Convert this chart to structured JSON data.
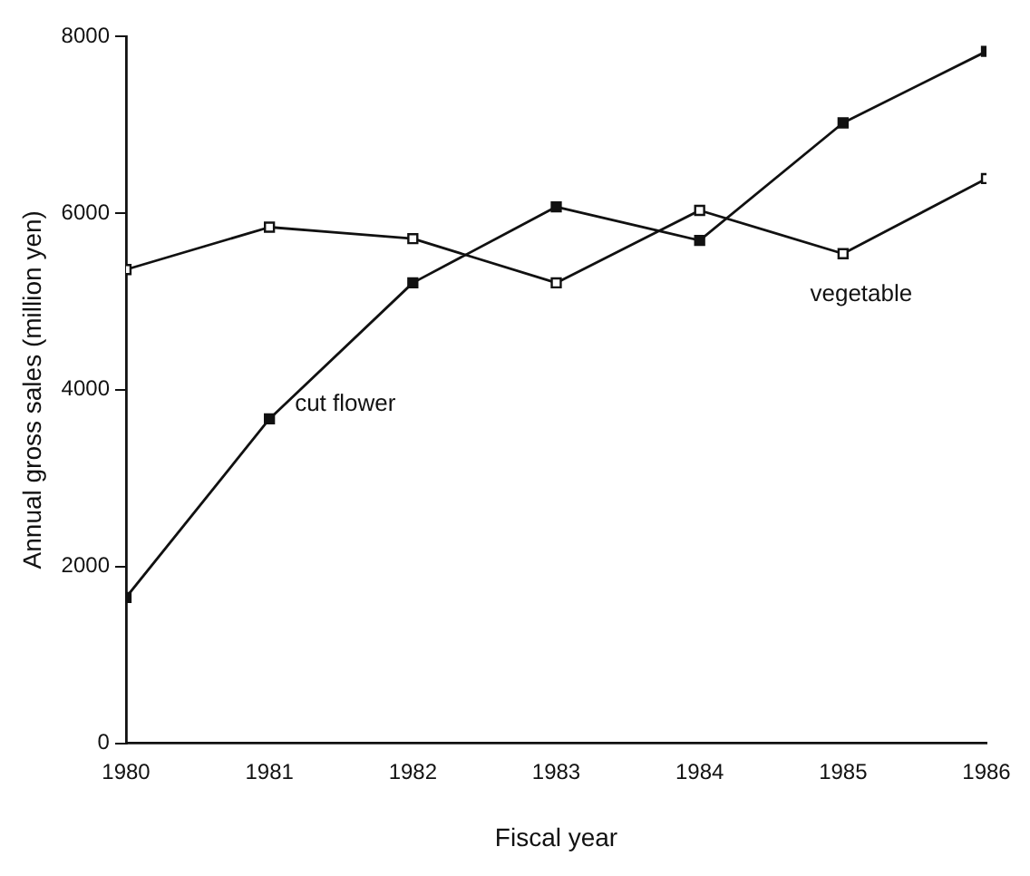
{
  "chart_data": {
    "type": "line",
    "xlabel": "Fiscal year",
    "ylabel": "Annual gross sales (million yen)",
    "x": [
      1980,
      1981,
      1982,
      1983,
      1984,
      1985,
      1986
    ],
    "xlim": [
      1980,
      1986
    ],
    "xticks": [
      1980,
      1981,
      1982,
      1983,
      1984,
      1985,
      1986
    ],
    "ylim": [
      0,
      8000
    ],
    "yticks": [
      0,
      2000,
      4000,
      6000,
      8000
    ],
    "series": [
      {
        "name": "cut flower",
        "color": "#111111",
        "values": [
          1650,
          3670,
          5210,
          6070,
          5690,
          7020,
          7830
        ]
      },
      {
        "name": "vegetable",
        "color": "#111111",
        "values": [
          5360,
          5840,
          5710,
          5210,
          6030,
          5540,
          6390
        ]
      }
    ],
    "marker": "square",
    "line_style": "solid",
    "grid": false,
    "legend": false
  }
}
